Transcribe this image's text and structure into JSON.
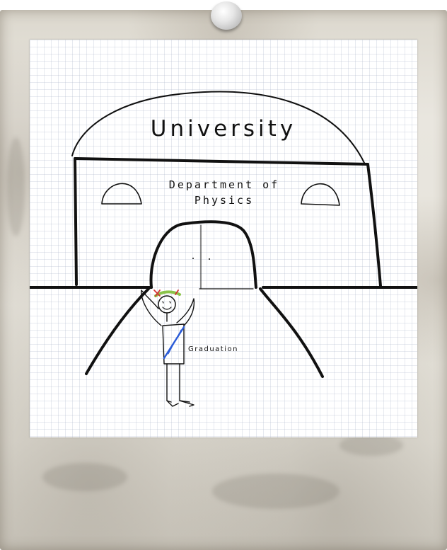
{
  "drawing": {
    "title": "University",
    "department_line1": "Department of",
    "department_line2": "Physics",
    "sash_label": "Graduation"
  },
  "colors": {
    "ink": "#111111",
    "sash": "#2a5bd7",
    "wreath": "#8bc34a",
    "berries": "#d32f2f",
    "frame": "#e4e1d8"
  }
}
